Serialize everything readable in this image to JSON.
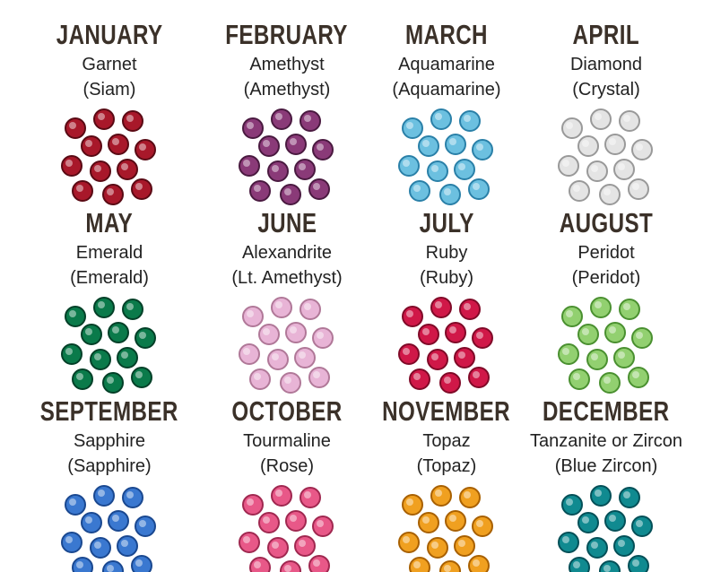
{
  "months": [
    {
      "month": "JANUARY",
      "gem": "Garnet",
      "crystal": "(Siam)"
    },
    {
      "month": "FEBRUARY",
      "gem": "Amethyst",
      "crystal": "(Amethyst)"
    },
    {
      "month": "MARCH",
      "gem": "Aquamarine",
      "crystal": "(Aquamarine)"
    },
    {
      "month": "APRIL",
      "gem": "Diamond",
      "crystal": "(Crystal)"
    },
    {
      "month": "MAY",
      "gem": "Emerald",
      "crystal": "(Emerald)"
    },
    {
      "month": "JUNE",
      "gem": "Alexandrite",
      "crystal": "(Lt. Amethyst)"
    },
    {
      "month": "JULY",
      "gem": "Ruby",
      "crystal": "(Ruby)"
    },
    {
      "month": "AUGUST",
      "gem": "Peridot",
      "crystal": "(Peridot)"
    },
    {
      "month": "SEPTEMBER",
      "gem": "Sapphire",
      "crystal": "(Sapphire)"
    },
    {
      "month": "OCTOBER",
      "gem": "Tourmaline",
      "crystal": "(Rose)"
    },
    {
      "month": "NOVEMBER",
      "gem": "Topaz",
      "crystal": "(Topaz)"
    },
    {
      "month": "DECEMBER",
      "gem": "Tanzanite or Zircon",
      "crystal": "(Blue Zircon)"
    }
  ]
}
